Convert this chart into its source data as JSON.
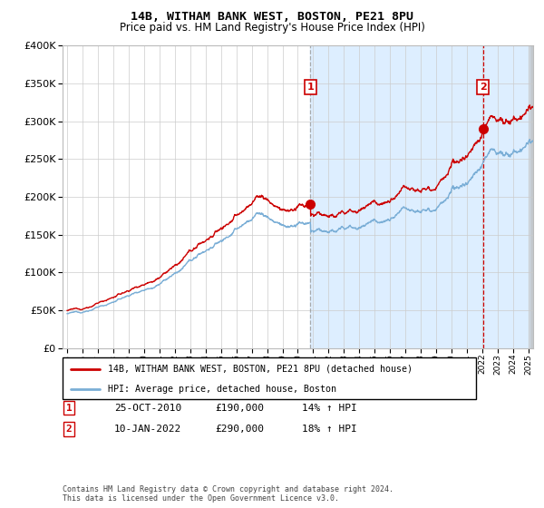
{
  "title": "14B, WITHAM BANK WEST, BOSTON, PE21 8PU",
  "subtitle": "Price paid vs. HM Land Registry's House Price Index (HPI)",
  "legend_line1": "14B, WITHAM BANK WEST, BOSTON, PE21 8PU (detached house)",
  "legend_line2": "HPI: Average price, detached house, Boston",
  "transaction1_date": "25-OCT-2010",
  "transaction1_price": 190000,
  "transaction1_hpi": "14% ↑ HPI",
  "transaction2_date": "10-JAN-2022",
  "transaction2_price": 290000,
  "transaction2_hpi": "18% ↑ HPI",
  "footnote1": "Contains HM Land Registry data © Crown copyright and database right 2024.",
  "footnote2": "This data is licensed under the Open Government Licence v3.0.",
  "hpi_line_color": "#7aaed6",
  "price_line_color": "#cc0000",
  "marker_color": "#cc0000",
  "bg_shade_color": "#ddeeff",
  "vline1_color": "#999999",
  "vline2_color": "#cc0000",
  "ylim": [
    0,
    400000
  ],
  "yticks": [
    0,
    50000,
    100000,
    150000,
    200000,
    250000,
    300000,
    350000,
    400000
  ],
  "transaction1_x": 2010.82,
  "transaction2_x": 2022.03
}
